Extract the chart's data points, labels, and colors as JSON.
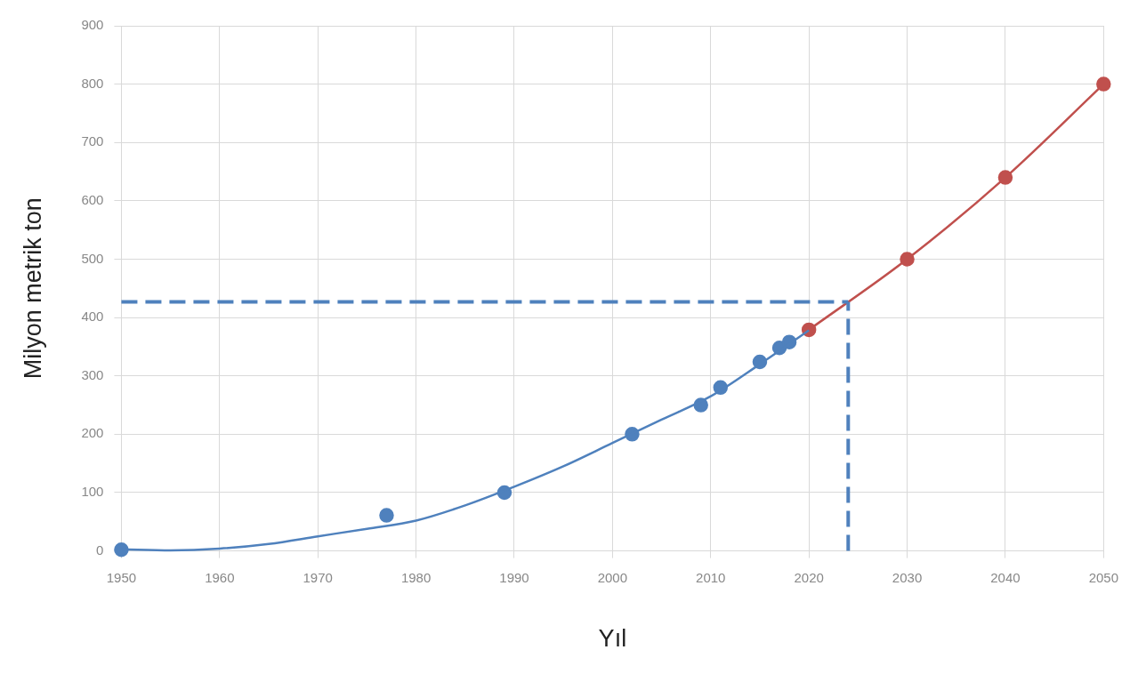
{
  "chart_data": {
    "type": "scatter",
    "xlabel": "Yıl",
    "ylabel": "Milyon metrik ton",
    "xlim": [
      1950,
      2050
    ],
    "xticks": [
      1950,
      1960,
      1970,
      1980,
      1990,
      2000,
      2010,
      2020,
      2030,
      2040,
      2050
    ],
    "ylim": [
      0,
      900
    ],
    "yticks": [
      0,
      100,
      200,
      300,
      400,
      500,
      600,
      700,
      800,
      900
    ],
    "grid": true,
    "legend": false,
    "series": [
      {
        "type": "line",
        "color": "#4f81bd",
        "marker": "none",
        "x": [
          1950,
          1955,
          1960,
          1965,
          1970,
          1975,
          1980,
          1985,
          1990,
          1995,
          2000,
          2005,
          2010,
          2015,
          2020
        ],
        "values": [
          3,
          1,
          4,
          12,
          25,
          38,
          52,
          78,
          110,
          145,
          185,
          225,
          265,
          320,
          378
        ]
      },
      {
        "color": "#4f81bd",
        "marker": "circle",
        "x": [
          1950,
          1977,
          1989,
          2002,
          2009,
          2011,
          2015,
          2017,
          2018
        ],
        "values": [
          2,
          61,
          100,
          200,
          250,
          280,
          324,
          348,
          358
        ]
      },
      {
        "type": "line",
        "color": "#c0504d",
        "marker": "circle",
        "x": [
          2020,
          2030,
          2040,
          2050
        ],
        "values": [
          379,
          500,
          640,
          800
        ]
      }
    ],
    "ref_lines": [
      {
        "axis": "y",
        "value": 427,
        "color": "#4f81bd",
        "line_style": "dashed"
      },
      {
        "axis": "x",
        "value": 2024,
        "color": "#4f81bd",
        "line_style": "dashed"
      }
    ]
  }
}
